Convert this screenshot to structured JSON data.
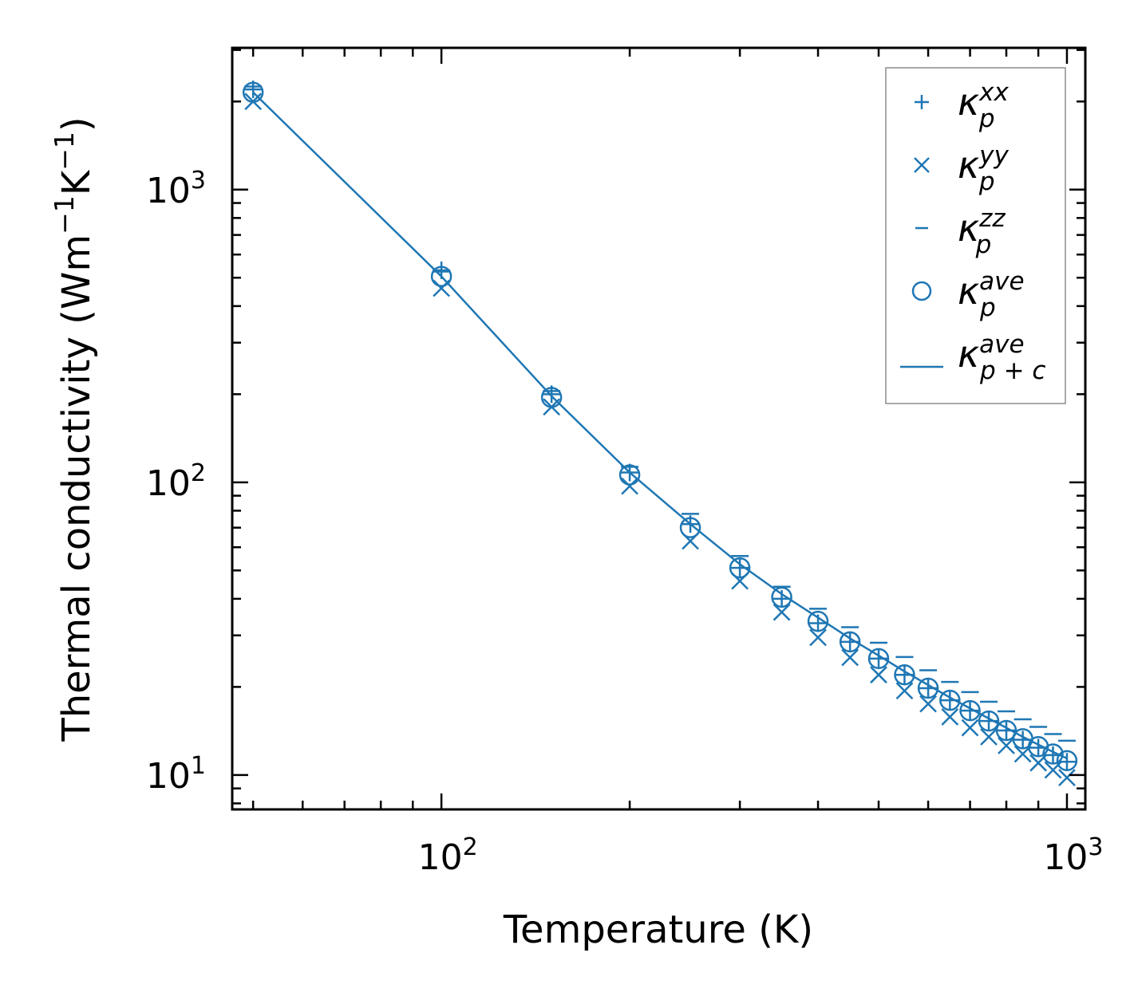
{
  "chart_data": {
    "type": "scatter",
    "title": "",
    "xlabel": "Temperature (K)",
    "ylabel_base": "Thermal conductivity (Wm",
    "ylabel_parts": [
      "Thermal conductivity (Wm",
      "−1",
      "K",
      "−1",
      ")"
    ],
    "xscale": "log",
    "yscale": "log",
    "xlim": [
      46.3,
      1070
    ],
    "ylim": [
      7.63,
      3050
    ],
    "x_ticks": [
      {
        "base": "10",
        "exp": "2",
        "value": 100
      },
      {
        "base": "10",
        "exp": "3",
        "value": 1000
      }
    ],
    "y_ticks": [
      {
        "base": "10",
        "exp": "1",
        "value": 10
      },
      {
        "base": "10",
        "exp": "2",
        "value": 100
      },
      {
        "base": "10",
        "exp": "3",
        "value": 1000
      }
    ],
    "color": "#1f77b4",
    "x": [
      50,
      100,
      150,
      200,
      250,
      300,
      350,
      400,
      450,
      500,
      550,
      600,
      650,
      700,
      750,
      800,
      850,
      900,
      950,
      1000
    ],
    "series": [
      {
        "name": "κp^xx",
        "marker": "plus",
        "values": [
          2200,
          530,
          200,
          108,
          72,
          51,
          40,
          33,
          28.5,
          25,
          22,
          19.8,
          18,
          16.6,
          15.3,
          14.2,
          13.2,
          12.4,
          11.7,
          11.1
        ]
      },
      {
        "name": "κp^yy",
        "marker": "x",
        "values": [
          2000,
          460,
          181,
          97,
          63,
          46,
          36,
          29.5,
          25.2,
          22,
          19.4,
          17.5,
          15.8,
          14.5,
          13.5,
          12.6,
          11.8,
          11,
          10.4,
          9.8
        ]
      },
      {
        "name": "κp^zz",
        "marker": "hline",
        "values": [
          2250,
          525,
          205,
          113,
          78,
          56,
          44,
          37,
          32,
          28.3,
          25.3,
          22.8,
          20.8,
          19.2,
          17.8,
          16.5,
          15.5,
          14.6,
          13.8,
          13.1
        ]
      },
      {
        "name": "κp^ave",
        "marker": "circle",
        "values": [
          2150,
          505,
          195,
          106,
          70,
          51,
          40.5,
          33.5,
          28.5,
          25,
          22,
          19.8,
          18,
          16.6,
          15.3,
          14.2,
          13.3,
          12.5,
          11.8,
          11.2
        ]
      },
      {
        "name": "κp+c^ave",
        "marker": "line",
        "values": [
          2150,
          505,
          197,
          108,
          72,
          52.5,
          41.5,
          34.5,
          29.3,
          25.6,
          22.6,
          20.3,
          18.4,
          16.9,
          15.6,
          14.5,
          13.5,
          12.7,
          12,
          11.4
        ]
      }
    ],
    "legend": {
      "position": "top-right",
      "entries": [
        {
          "symbol": "κ",
          "sub": "p",
          "sup": "xx",
          "marker": "plus"
        },
        {
          "symbol": "κ",
          "sub": "p",
          "sup": "yy",
          "marker": "x"
        },
        {
          "symbol": "κ",
          "sub": "p",
          "sup": "zz",
          "marker": "hline"
        },
        {
          "symbol": "κ",
          "sub": "p",
          "sup": "ave",
          "marker": "circle"
        },
        {
          "symbol": "κ",
          "sub": "p + c",
          "sup": "ave",
          "marker": "line"
        }
      ]
    },
    "grid": false
  }
}
